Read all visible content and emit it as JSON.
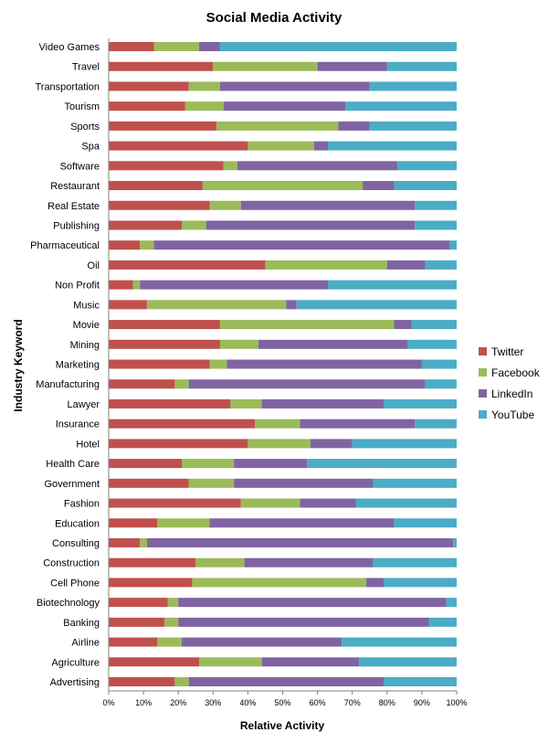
{
  "chart_data": {
    "type": "bar",
    "orientation": "horizontal",
    "stacked": "percent",
    "title": "Social Media Activity",
    "xlabel": "Relative Activity",
    "ylabel": "Industry Keyword",
    "xlim": [
      0,
      100
    ],
    "xticks": [
      "0%",
      "10%",
      "20%",
      "30%",
      "40%",
      "50%",
      "60%",
      "70%",
      "80%",
      "90%",
      "100%"
    ],
    "legend_position": "right",
    "grid": false,
    "categories": [
      "Video Games",
      "Travel",
      "Transportation",
      "Tourism",
      "Sports",
      "Spa",
      "Software",
      "Restaurant",
      "Real Estate",
      "Publishing",
      "Pharmaceutical",
      "Oil",
      "Non Profit",
      "Music",
      "Movie",
      "Mining",
      "Marketing",
      "Manufacturing",
      "Lawyer",
      "Insurance",
      "Hotel",
      "Health Care",
      "Government",
      "Fashion",
      "Education",
      "Consulting",
      "Construction",
      "Cell Phone",
      "Biotechnology",
      "Banking",
      "Airline",
      "Agriculture",
      "Advertising"
    ],
    "series": [
      {
        "name": "Twitter",
        "color": "#c0504d",
        "values": [
          13,
          30,
          23,
          22,
          31,
          40,
          33,
          27,
          29,
          21,
          9,
          45,
          7,
          11,
          32,
          32,
          29,
          19,
          35,
          42,
          40,
          21,
          23,
          38,
          14,
          9,
          25,
          24,
          17,
          16,
          14,
          26,
          19
        ]
      },
      {
        "name": "Facebook",
        "color": "#9bbb59",
        "values": [
          13,
          30,
          9,
          11,
          35,
          19,
          4,
          46,
          9,
          7,
          4,
          35,
          2,
          40,
          50,
          11,
          5,
          4,
          9,
          13,
          18,
          15,
          13,
          17,
          15,
          2,
          14,
          50,
          3,
          4,
          7,
          18,
          4
        ]
      },
      {
        "name": "LinkedIn",
        "color": "#8064a2",
        "values": [
          6,
          20,
          43,
          35,
          9,
          4,
          46,
          9,
          50,
          60,
          85,
          11,
          54,
          3,
          5,
          43,
          56,
          68,
          35,
          33,
          12,
          21,
          40,
          16,
          53,
          88,
          37,
          5,
          77,
          72,
          46,
          28,
          56
        ]
      },
      {
        "name": "YouTube",
        "color": "#4bacc6",
        "values": [
          68,
          20,
          25,
          32,
          25,
          37,
          17,
          18,
          12,
          12,
          2,
          9,
          37,
          46,
          13,
          14,
          10,
          9,
          21,
          12,
          30,
          43,
          24,
          29,
          18,
          1,
          24,
          21,
          3,
          8,
          33,
          28,
          21
        ]
      }
    ]
  }
}
